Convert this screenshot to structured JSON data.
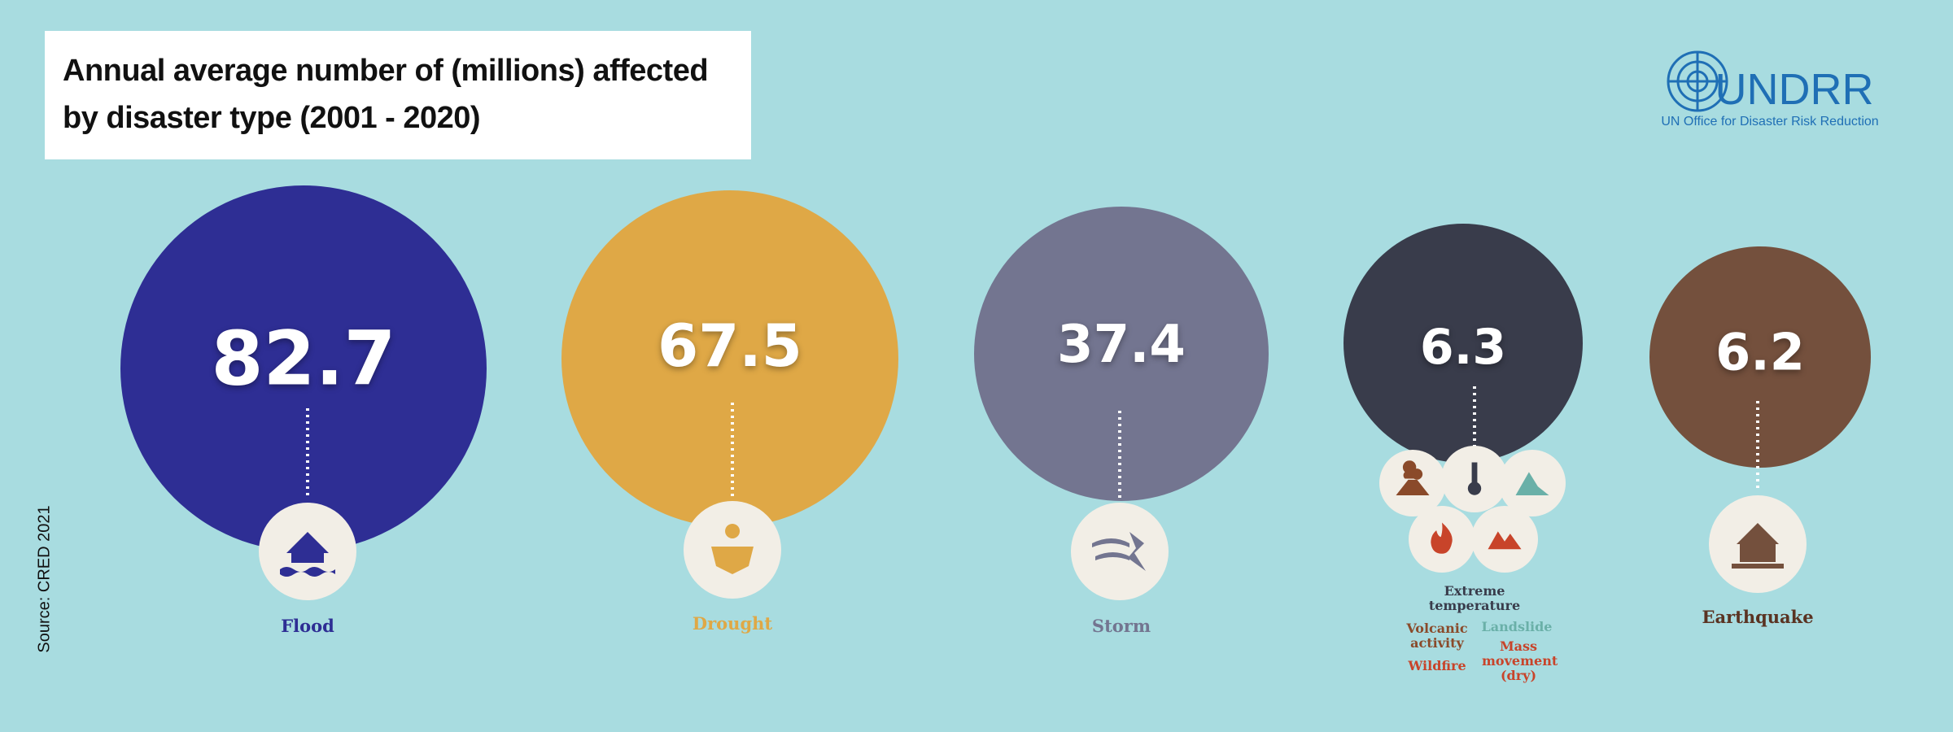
{
  "header": {
    "title": "Annual average number of (millions) affected by disaster type (2001 - 2020)"
  },
  "logo": {
    "name": "UNDRR",
    "subtitle": "UN Office for Disaster Risk Reduction"
  },
  "source": "Source: CRED 2021",
  "items": [
    {
      "value": 82.7,
      "label": "Flood"
    },
    {
      "value": 67.5,
      "label": "Drought"
    },
    {
      "value": 37.4,
      "label": "Storm"
    },
    {
      "value": 6.3,
      "label": "Extreme temperature",
      "sub_labels": [
        "Volcanic activity",
        "Landslide",
        "Wildfire",
        "Mass movement (dry)"
      ]
    },
    {
      "value": 6.2,
      "label": "Earthquake"
    }
  ]
}
